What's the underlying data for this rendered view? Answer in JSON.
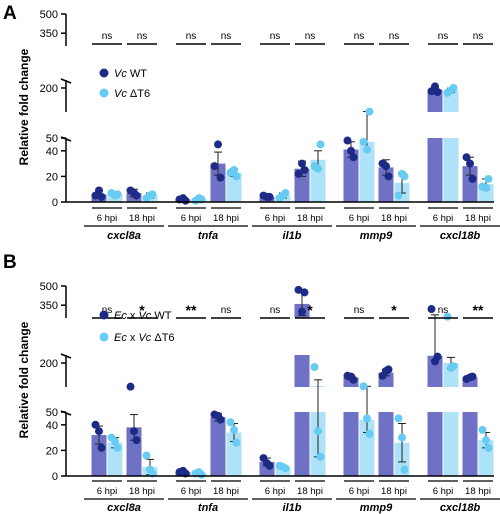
{
  "colors": {
    "wt_bar": "#6f72c4",
    "wt_dot": "#1d2a86",
    "dt6_bar": "#aee2f8",
    "dt6_dot": "#66ccf1",
    "axis": "#000000"
  },
  "chart_data": [
    {
      "panel": "A",
      "type": "bar",
      "ylabel": "Relative fold change",
      "y_axis_breaks": [
        {
          "segment": "lower",
          "range": [
            0,
            50
          ],
          "ticks": [
            "0",
            "20",
            "40"
          ]
        },
        {
          "segment": "middle",
          "range": [
            50,
            250
          ],
          "ticks": [
            "50",
            "200"
          ]
        },
        {
          "segment": "upper",
          "range": [
            250,
            500
          ],
          "ticks": [
            "350",
            "500"
          ]
        }
      ],
      "legend": {
        "placement": "top-left",
        "entries": [
          {
            "italic": "Vc",
            "rest": " WT"
          },
          {
            "italic": "Vc",
            "rest": " ΔT6"
          }
        ]
      },
      "genes": [
        "cxcl8a",
        "tnfa",
        "il1b",
        "mmp9",
        "cxcl18b"
      ],
      "timepoints": [
        "6 hpi",
        "18 hpi"
      ],
      "significance": [
        "ns",
        "ns",
        "ns",
        "ns",
        "ns",
        "ns",
        "ns",
        "ns",
        "ns",
        "ns"
      ],
      "series": [
        {
          "values": [
            6,
            7,
            2,
            30,
            4,
            26,
            41,
            27,
            190,
            28
          ],
          "errors": [
            3,
            3,
            1,
            9,
            1,
            6,
            6,
            6,
            17,
            7
          ],
          "points": [
            [
              5,
              4,
              9
            ],
            [
              9,
              5,
              7
            ],
            [
              2,
              1,
              3
            ],
            [
              28,
              19,
              45
            ],
            [
              5,
              4,
              4
            ],
            [
              22,
              25,
              30
            ],
            [
              48,
              35,
              40
            ],
            [
              30,
              20,
              28
            ],
            [
              180,
              175,
              210
            ],
            [
              35,
              18,
              30
            ]
          ]
        },
        {
          "values": [
            6,
            5,
            2,
            23,
            5,
            33,
            47,
            15,
            185,
            14
          ],
          "errors": [
            1,
            2,
            1,
            3,
            2,
            7,
            6,
            8,
            14,
            4
          ],
          "points": [
            [
              7,
              6,
              5
            ],
            [
              3,
              6,
              5
            ],
            [
              1,
              2,
              3
            ],
            [
              23,
              20,
              25
            ],
            [
              3,
              7,
              5
            ],
            [
              28,
              45,
              26
            ],
            [
              47,
              52,
              41
            ],
            [
              5,
              20,
              22
            ],
            [
              170,
              200,
              185
            ],
            [
              12,
              18,
              11
            ]
          ]
        }
      ]
    },
    {
      "panel": "B",
      "type": "bar",
      "ylabel": "Relative fold change",
      "y_axis_breaks": [
        {
          "segment": "lower",
          "range": [
            0,
            50
          ],
          "ticks": [
            "0",
            "20",
            "40"
          ]
        },
        {
          "segment": "middle",
          "range": [
            50,
            250
          ],
          "ticks": [
            "50",
            "200"
          ]
        },
        {
          "segment": "upper",
          "range": [
            250,
            500
          ],
          "ticks": [
            "350",
            "500"
          ]
        }
      ],
      "legend": {
        "placement": "top-left",
        "entries": [
          {
            "italic": "Ec",
            "rest": " x ",
            "italic2": "Vc",
            "rest2": " WT"
          },
          {
            "italic": "Ec",
            "rest": " x ",
            "italic2": "Vc",
            "rest2": " ΔT6"
          }
        ]
      },
      "genes": [
        "cxcl8a",
        "tnfa",
        "il1b",
        "mmp9",
        "cxcl18b"
      ],
      "timepoints": [
        "6 hpi",
        "18 hpi"
      ],
      "significance": [
        "ns",
        "*",
        "**",
        "ns",
        "ns",
        "*",
        "ns",
        "*",
        "ns",
        "**"
      ],
      "series": [
        {
          "values": [
            32,
            38,
            3,
            46,
            11,
            360,
            110,
            140,
            245,
            110
          ],
          "errors": [
            7,
            10,
            1,
            3,
            3,
            90,
            15,
            20,
            30,
            10
          ],
          "points": [
            [
              40,
              22,
              35
            ],
            [
              52,
              28,
              35
            ],
            [
              3,
              2,
              4
            ],
            [
              48,
              44,
              47
            ],
            [
              14,
              8,
              10
            ],
            [
              470,
              450,
              300
            ],
            [
              120,
              95,
              115
            ],
            [
              120,
              160,
              150
            ],
            [
              320,
              240,
              210
            ],
            [
              100,
              115,
              110
            ]
          ]
        },
        {
          "values": [
            26,
            7,
            2,
            34,
            7,
            55,
            44,
            26,
            200,
            28
          ],
          "errors": [
            4,
            6,
            1,
            7,
            1,
            40,
            10,
            15,
            35,
            6
          ],
          "points": [
            [
              30,
              22,
              27
            ],
            [
              16,
              2,
              5
            ],
            [
              2,
              1,
              3
            ],
            [
              42,
              26,
              36
            ],
            [
              8,
              6,
              7
            ],
            [
              175,
              15,
              35
            ],
            [
              55,
              33,
              45
            ],
            [
              45,
              5,
              30
            ],
            [
              260,
              180,
              170
            ],
            [
              36,
              22,
              28
            ]
          ]
        }
      ]
    }
  ]
}
